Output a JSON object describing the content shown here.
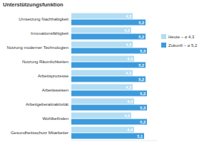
{
  "chart_data": {
    "type": "bar",
    "orientation": "horizontal",
    "title": "Unterstützungsfunktion",
    "categories": [
      "Umsetzung Nachhaltigkeit",
      "Innovationsfähigkeit",
      "Nutzung moderner Technologien",
      "Nutzung Räumlichkeiten",
      "Arbeitsprozesse",
      "Arbeitsweisen",
      "Arbeitgeberattraktivität",
      "Wohlbefinden",
      "Gesundheitsschutz Mitarbeiter"
    ],
    "series": [
      {
        "name": "Heute – ⌀ 4,3",
        "color": "#b3ddf3",
        "values": [
          4.3,
          4.2,
          4.3,
          4.4,
          4.3,
          4.3,
          4.4,
          4.2,
          4.4
        ],
        "value_labels": [
          "4,3",
          "4,2",
          "4,3",
          "4,4",
          "4,3",
          "4,3",
          "4,4",
          "4,2",
          "4,4"
        ]
      },
      {
        "name": "Zukunft – ⌀ 5,2",
        "color": "#3c9bdc",
        "values": [
          5.2,
          5.2,
          5.3,
          5.2,
          5.2,
          5.3,
          5.3,
          5.3,
          5.1
        ],
        "value_labels": [
          "5,2",
          "5,2",
          "5,3",
          "5,2",
          "5,2",
          "5,3",
          "5,3",
          "5,3",
          "5,1"
        ]
      }
    ],
    "xlim": [
      0,
      6
    ],
    "grid": false,
    "legend": "right",
    "data_labels": true,
    "tick_labels": "y"
  }
}
